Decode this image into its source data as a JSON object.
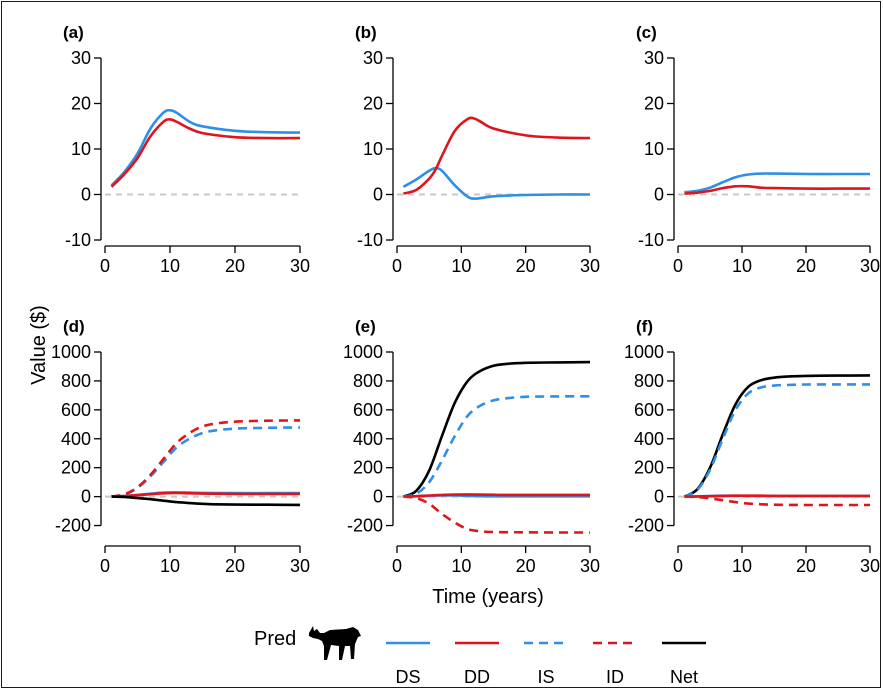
{
  "figure": {
    "ylabel": "Value ($)",
    "xlabel": "Time (years)",
    "legend": {
      "title": "Pred",
      "icon": "wolf-silhouette-icon",
      "entries": [
        {
          "label": "DS",
          "color": "#2e8fe6",
          "style": "solid"
        },
        {
          "label": "DD",
          "color": "#e0151b",
          "style": "solid"
        },
        {
          "label": "IS",
          "color": "#2e8fe6",
          "style": "dashed"
        },
        {
          "label": "ID",
          "color": "#e0151b",
          "style": "dashed"
        },
        {
          "label": "Net",
          "color": "#000000",
          "style": "solid"
        }
      ]
    }
  },
  "chart_data": [
    {
      "panel": "(a)",
      "type": "line",
      "xlim": [
        0,
        30
      ],
      "ylim": [
        -10,
        30
      ],
      "xticks": [
        0,
        10,
        20,
        30
      ],
      "yticks": [
        -10,
        0,
        10,
        20,
        30
      ],
      "xticklabels": [
        "0",
        "10",
        "20",
        "30"
      ],
      "yticklabels": [
        "-10",
        "0",
        "10",
        "20",
        "30"
      ],
      "zero_line": true,
      "x": [
        1,
        3,
        5,
        7,
        9,
        10,
        11,
        13,
        15,
        20,
        25,
        30
      ],
      "series": [
        {
          "name": "DS",
          "color": "#2e8fe6",
          "dash": false,
          "values": [
            2,
            5,
            9,
            14.5,
            18,
            18.5,
            18,
            16,
            15,
            14,
            13.7,
            13.6
          ]
        },
        {
          "name": "DD",
          "color": "#e0151b",
          "dash": false,
          "values": [
            1.7,
            4.5,
            8,
            12.8,
            16,
            16.5,
            16,
            14.5,
            13.5,
            12.6,
            12.4,
            12.4
          ]
        }
      ]
    },
    {
      "panel": "(b)",
      "type": "line",
      "xlim": [
        0,
        30
      ],
      "ylim": [
        -10,
        30
      ],
      "xticks": [
        0,
        10,
        20,
        30
      ],
      "yticks": [
        -10,
        0,
        10,
        20,
        30
      ],
      "xticklabels": [
        "0",
        "10",
        "20",
        "30"
      ],
      "yticklabels": [
        "-10",
        "0",
        "10",
        "20",
        "30"
      ],
      "zero_line": true,
      "x": [
        1,
        3,
        5,
        6,
        7,
        9,
        11,
        12,
        13,
        15,
        20,
        25,
        30
      ],
      "series": [
        {
          "name": "DS",
          "color": "#2e8fe6",
          "dash": false,
          "values": [
            1.7,
            3.3,
            5.2,
            5.8,
            5.2,
            2,
            -0.5,
            -0.9,
            -0.8,
            -0.4,
            -0.1,
            0,
            0
          ]
        },
        {
          "name": "DD",
          "color": "#e0151b",
          "dash": false,
          "values": [
            0.2,
            1,
            3.5,
            5.5,
            8.5,
            14,
            16.6,
            16.7,
            16,
            14.5,
            13,
            12.5,
            12.4
          ]
        }
      ]
    },
    {
      "panel": "(c)",
      "type": "line",
      "xlim": [
        0,
        30
      ],
      "ylim": [
        -10,
        30
      ],
      "xticks": [
        0,
        10,
        20,
        30
      ],
      "yticks": [
        -10,
        0,
        10,
        20,
        30
      ],
      "xticklabels": [
        "0",
        "10",
        "20",
        "30"
      ],
      "yticklabels": [
        "-10",
        "0",
        "10",
        "20",
        "30"
      ],
      "zero_line": true,
      "x": [
        1,
        3,
        5,
        7,
        9,
        11,
        13,
        15,
        20,
        25,
        30
      ],
      "series": [
        {
          "name": "DS",
          "color": "#2e8fe6",
          "dash": false,
          "values": [
            0.5,
            0.8,
            1.5,
            2.7,
            3.8,
            4.4,
            4.6,
            4.6,
            4.5,
            4.5,
            4.5
          ]
        },
        {
          "name": "DD",
          "color": "#e0151b",
          "dash": false,
          "values": [
            0.2,
            0.4,
            0.8,
            1.4,
            1.8,
            1.8,
            1.5,
            1.4,
            1.3,
            1.3,
            1.3
          ]
        }
      ]
    },
    {
      "panel": "(d)",
      "type": "line",
      "xlim": [
        0,
        30
      ],
      "ylim": [
        -300,
        1000
      ],
      "xticks": [
        0,
        10,
        20,
        30
      ],
      "yticks": [
        -200,
        0,
        200,
        400,
        600,
        800,
        1000
      ],
      "xticklabels": [
        "0",
        "10",
        "20",
        "30"
      ],
      "yticklabels": [
        "-200",
        "0",
        "200",
        "400",
        "600",
        "800",
        "1000"
      ],
      "zero_line": true,
      "x": [
        1,
        3,
        5,
        7,
        9,
        11,
        13,
        15,
        17,
        20,
        25,
        30
      ],
      "series": [
        {
          "name": "IS",
          "color": "#2e8fe6",
          "dash": true,
          "values": [
            0,
            15,
            60,
            140,
            240,
            340,
            400,
            440,
            458,
            470,
            476,
            478
          ]
        },
        {
          "name": "ID",
          "color": "#e0151b",
          "dash": true,
          "values": [
            0,
            16,
            65,
            150,
            260,
            370,
            440,
            485,
            505,
            518,
            525,
            527
          ]
        },
        {
          "name": "DS",
          "color": "#2e8fe6",
          "dash": false,
          "values": [
            0,
            5,
            12,
            20,
            28,
            30,
            28,
            26,
            25,
            24,
            24,
            24
          ]
        },
        {
          "name": "DD",
          "color": "#e0151b",
          "dash": false,
          "values": [
            0,
            4,
            10,
            17,
            23,
            25,
            23,
            21,
            20,
            19,
            19,
            19
          ]
        },
        {
          "name": "Net",
          "color": "#000000",
          "dash": false,
          "values": [
            0,
            -3,
            -10,
            -18,
            -28,
            -38,
            -45,
            -50,
            -53,
            -55,
            -56,
            -57
          ]
        }
      ]
    },
    {
      "panel": "(e)",
      "type": "line",
      "xlim": [
        0,
        30
      ],
      "ylim": [
        -300,
        1000
      ],
      "xticks": [
        0,
        10,
        20,
        30
      ],
      "yticks": [
        -200,
        0,
        200,
        400,
        600,
        800,
        1000
      ],
      "xticklabels": [
        "0",
        "10",
        "20",
        "30"
      ],
      "yticklabels": [
        "-200",
        "0",
        "200",
        "400",
        "600",
        "800",
        "1000"
      ],
      "zero_line": true,
      "x": [
        1,
        3,
        5,
        7,
        9,
        11,
        13,
        15,
        17,
        20,
        25,
        30
      ],
      "series": [
        {
          "name": "Net",
          "color": "#000000",
          "dash": false,
          "values": [
            0,
            40,
            180,
            420,
            650,
            800,
            870,
            905,
            918,
            925,
            928,
            930
          ]
        },
        {
          "name": "IS",
          "color": "#2e8fe6",
          "dash": true,
          "values": [
            0,
            20,
            100,
            250,
            420,
            560,
            630,
            665,
            680,
            690,
            693,
            694
          ]
        },
        {
          "name": "ID",
          "color": "#e0151b",
          "dash": true,
          "values": [
            0,
            -10,
            -50,
            -120,
            -180,
            -225,
            -240,
            -245,
            -246,
            -247,
            -248,
            -248
          ]
        },
        {
          "name": "DS",
          "color": "#2e8fe6",
          "dash": false,
          "values": [
            0,
            2,
            5,
            8,
            8,
            5,
            3,
            2,
            2,
            2,
            2,
            2
          ]
        },
        {
          "name": "DD",
          "color": "#e0151b",
          "dash": false,
          "values": [
            0,
            3,
            8,
            12,
            14,
            15,
            14,
            13,
            12,
            12,
            12,
            12
          ]
        }
      ]
    },
    {
      "panel": "(f)",
      "type": "line",
      "xlim": [
        0,
        30
      ],
      "ylim": [
        -300,
        1000
      ],
      "xticks": [
        0,
        10,
        20,
        30
      ],
      "yticks": [
        -200,
        0,
        200,
        400,
        600,
        800,
        1000
      ],
      "xticklabels": [
        "0",
        "10",
        "20",
        "30"
      ],
      "yticklabels": [
        "-200",
        "0",
        "200",
        "400",
        "600",
        "800",
        "1000"
      ],
      "zero_line": true,
      "x": [
        1,
        3,
        5,
        7,
        9,
        11,
        13,
        15,
        17,
        20,
        25,
        30
      ],
      "series": [
        {
          "name": "Net",
          "color": "#000000",
          "dash": false,
          "values": [
            0,
            50,
            200,
            430,
            640,
            760,
            805,
            822,
            830,
            835,
            837,
            838
          ]
        },
        {
          "name": "IS",
          "color": "#2e8fe6",
          "dash": true,
          "values": [
            0,
            45,
            185,
            400,
            600,
            715,
            755,
            768,
            772,
            775,
            776,
            776
          ]
        },
        {
          "name": "ID",
          "color": "#e0151b",
          "dash": true,
          "values": [
            0,
            -3,
            -12,
            -25,
            -38,
            -48,
            -53,
            -56,
            -57,
            -58,
            -58,
            -58
          ]
        },
        {
          "name": "DS",
          "color": "#2e8fe6",
          "dash": false,
          "values": [
            0,
            2,
            4,
            6,
            6,
            5,
            5,
            5,
            5,
            5,
            5,
            5
          ]
        },
        {
          "name": "DD",
          "color": "#e0151b",
          "dash": false,
          "values": [
            0,
            1,
            3,
            5,
            6,
            6,
            6,
            5,
            5,
            5,
            5,
            5
          ]
        }
      ]
    }
  ]
}
